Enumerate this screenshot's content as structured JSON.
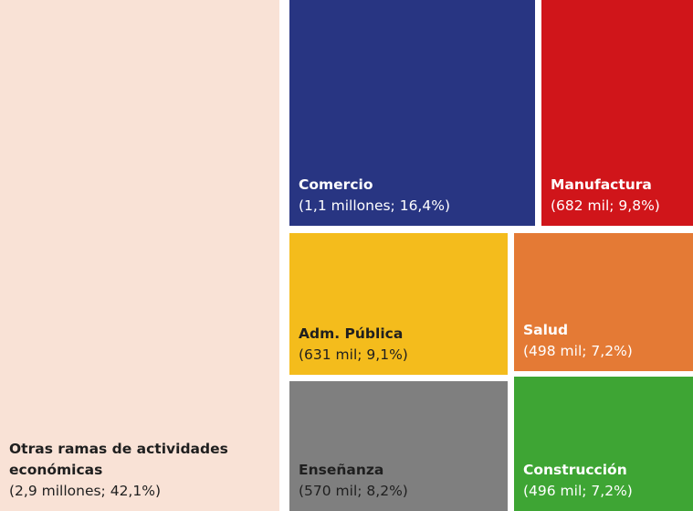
{
  "chart_data": {
    "type": "treemap",
    "title": "",
    "unit": "empleo por rama de actividad",
    "items": [
      {
        "key": "otras",
        "name": "Otras ramas de actividades económicas",
        "detail": "(2,9 millones; 42,1%)",
        "share": 42.1,
        "color": "#f9e2d6",
        "text": "light"
      },
      {
        "key": "comercio",
        "name": "Comercio",
        "detail": "(1,1 millones; 16,4%)",
        "share": 16.4,
        "color": "#283582",
        "text": "dark"
      },
      {
        "key": "manufactura",
        "name": "Manufactura",
        "detail": "(682 mil; 9,8%)",
        "share": 9.8,
        "color": "#d0151a",
        "text": "dark"
      },
      {
        "key": "adm_publica",
        "name": "Adm. Pública",
        "detail": "(631 mil; 9,1%)",
        "share": 9.1,
        "color": "#f4bc1c",
        "text": "light"
      },
      {
        "key": "salud",
        "name": "Salud",
        "detail": "(498 mil; 7,2%)",
        "share": 7.2,
        "color": "#e47a35",
        "text": "dark"
      },
      {
        "key": "ensenanza",
        "name": "Enseñanza",
        "detail": "(570 mil; 8,2%)",
        "share": 8.2,
        "color": "#7f7f7f",
        "text": "light"
      },
      {
        "key": "construccion",
        "name": "Construcción",
        "detail": "(496 mil; 7,2%)",
        "share": 7.2,
        "color": "#3ea534",
        "text": "dark"
      }
    ]
  }
}
